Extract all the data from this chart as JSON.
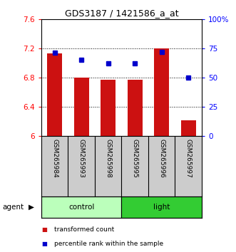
{
  "title": "GDS3187 / 1421586_a_at",
  "samples": [
    "GSM265984",
    "GSM265993",
    "GSM265998",
    "GSM265995",
    "GSM265996",
    "GSM265997"
  ],
  "bar_values": [
    7.13,
    6.8,
    6.77,
    6.77,
    7.2,
    6.22
  ],
  "percentile_values": [
    71,
    65,
    62,
    62,
    72,
    50
  ],
  "bar_color": "#cc1111",
  "dot_color": "#0000cc",
  "ymin": 6.0,
  "ymax": 7.6,
  "yticks": [
    6.0,
    6.4,
    6.8,
    7.2,
    7.6
  ],
  "right_ytick_labels": [
    "0",
    "25",
    "50",
    "75",
    "100%"
  ],
  "right_yticks": [
    0,
    25,
    50,
    75,
    100
  ],
  "gridlines": [
    6.4,
    6.8,
    7.2
  ],
  "groups": [
    {
      "label": "control",
      "indices": [
        0,
        1,
        2
      ],
      "color": "#bbffbb"
    },
    {
      "label": "light",
      "indices": [
        3,
        4,
        5
      ],
      "color": "#33cc33"
    }
  ],
  "agent_label": "agent",
  "legend_items": [
    {
      "label": "transformed count",
      "color": "#cc1111"
    },
    {
      "label": "percentile rank within the sample",
      "color": "#0000cc"
    }
  ],
  "bar_width": 0.55,
  "xlabels_bg": "#cccccc",
  "plot_bg": "#ffffff",
  "title_fontsize": 9,
  "tick_fontsize": 7.5,
  "label_fontsize": 7.5
}
